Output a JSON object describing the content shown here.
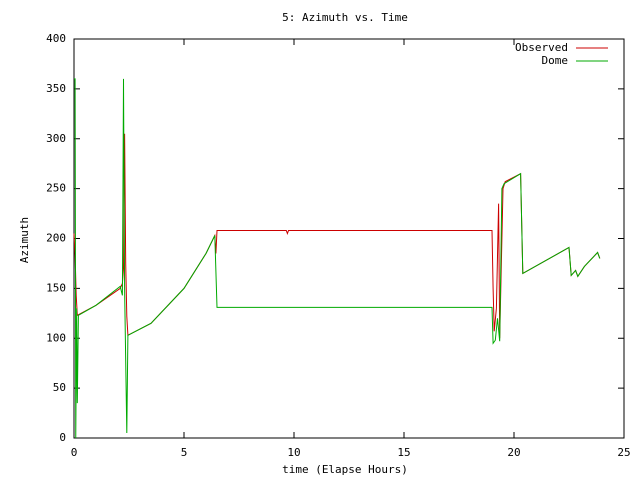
{
  "chart_data": {
    "type": "line",
    "title": "5: Azimuth vs. Time",
    "x_label": "time (Elapse Hours)",
    "y_label": "Azimuth",
    "xlim": [
      0,
      25
    ],
    "xticks": [
      0,
      5,
      10,
      15,
      20,
      25
    ],
    "ylim": [
      0,
      400
    ],
    "yticks": [
      0,
      50,
      100,
      150,
      200,
      250,
      300,
      350,
      400
    ],
    "grid": false,
    "legend": "top-right",
    "series": [
      {
        "name": "Observed",
        "color": "#cc0000",
        "x": [
          0,
          0.05,
          0.1,
          0.15,
          1.0,
          2.1,
          2.2,
          2.25,
          2.3,
          2.35,
          2.4,
          2.45,
          3.5,
          5.0,
          6.0,
          6.4,
          6.45,
          6.5,
          9.65,
          9.7,
          9.75,
          19.0,
          19.05,
          19.1,
          19.2,
          19.3,
          19.35,
          19.5,
          19.6,
          20.3,
          20.4,
          22.5,
          22.6,
          22.8,
          22.9,
          23.2,
          23.8,
          23.9
        ],
        "values": [
          205,
          183,
          143,
          123,
          133,
          150,
          155,
          170,
          305,
          175,
          122,
          103,
          115,
          150,
          185,
          203,
          185,
          208,
          208,
          205,
          208,
          208,
          150,
          107,
          130,
          235,
          100,
          250,
          257,
          265,
          165,
          191,
          163,
          168,
          162,
          172,
          186,
          180
        ]
      },
      {
        "name": "Dome",
        "color": "#00aa00",
        "x": [
          0,
          0.05,
          0.08,
          0.12,
          0.15,
          0.2,
          1.0,
          2.1,
          2.2,
          2.25,
          2.3,
          2.4,
          2.45,
          3.5,
          5.0,
          6.0,
          6.4,
          6.5,
          19.0,
          19.05,
          19.15,
          19.25,
          19.35,
          19.45,
          19.55,
          20.3,
          20.4,
          22.5,
          22.6,
          22.8,
          22.9,
          23.2,
          23.8,
          23.9
        ],
        "values": [
          360,
          360,
          0,
          130,
          35,
          123,
          133,
          152,
          143,
          360,
          150,
          5,
          103,
          115,
          150,
          185,
          203,
          131,
          131,
          95,
          98,
          120,
          97,
          250,
          255,
          265,
          165,
          191,
          163,
          168,
          162,
          172,
          186,
          180
        ]
      }
    ]
  }
}
